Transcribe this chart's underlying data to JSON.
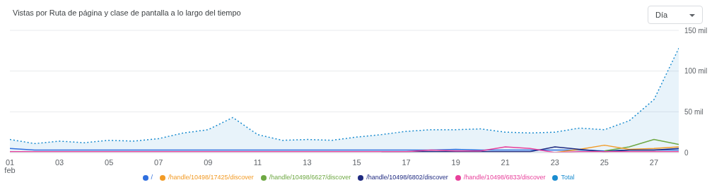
{
  "chart_data": {
    "type": "line",
    "title": "Vistas por Ruta de página y clase de pantalla a lo largo del tiempo",
    "x": [
      1,
      2,
      3,
      4,
      5,
      6,
      7,
      8,
      9,
      10,
      11,
      12,
      13,
      14,
      15,
      16,
      17,
      18,
      19,
      20,
      21,
      22,
      23,
      24,
      25,
      26,
      27,
      28
    ],
    "xlim": [
      1,
      28
    ],
    "xticks": [
      {
        "value": 1,
        "label": "01\nfeb"
      },
      {
        "value": 3,
        "label": "03"
      },
      {
        "value": 5,
        "label": "05"
      },
      {
        "value": 7,
        "label": "07"
      },
      {
        "value": 9,
        "label": "09"
      },
      {
        "value": 11,
        "label": "11"
      },
      {
        "value": 13,
        "label": "13"
      },
      {
        "value": 15,
        "label": "15"
      },
      {
        "value": 17,
        "label": "17"
      },
      {
        "value": 19,
        "label": "19"
      },
      {
        "value": 21,
        "label": "21"
      },
      {
        "value": 23,
        "label": "23"
      },
      {
        "value": 25,
        "label": "25"
      },
      {
        "value": 27,
        "label": "27"
      }
    ],
    "ylim": [
      0,
      150
    ],
    "yticks": [
      0,
      {
        "value": 50,
        "label": "50 mil"
      },
      {
        "value": 100,
        "label": "100 mil"
      },
      {
        "value": 150,
        "label": "150 mil"
      }
    ],
    "grid": "y",
    "legend": "bottom",
    "annotations": [
      "Día"
    ],
    "series": [
      {
        "name": "Total",
        "type": "area",
        "line_style": "dotted",
        "color": "#1a8ccf",
        "values": [
          16,
          11,
          14,
          12,
          15,
          14,
          17,
          24,
          28,
          43,
          22,
          15,
          16,
          15,
          19,
          22,
          26,
          28,
          28,
          29,
          25,
          24,
          25,
          30,
          28,
          39,
          65,
          128
        ]
      },
      {
        "name": "/",
        "color": "#2f6fdf",
        "values": [
          5,
          3,
          3,
          3,
          3,
          3,
          3,
          3,
          3,
          3,
          3,
          3,
          3,
          3,
          3,
          3,
          3,
          3,
          4,
          3,
          3,
          3,
          3,
          3,
          2,
          3,
          3,
          3
        ]
      },
      {
        "name": "/handle/10498/6627/discover",
        "color": "#6ea843",
        "values": [
          null,
          null,
          null,
          null,
          null,
          null,
          null,
          null,
          null,
          null,
          null,
          null,
          null,
          null,
          null,
          null,
          null,
          null,
          null,
          null,
          null,
          null,
          null,
          null,
          2,
          7,
          16,
          10
        ]
      },
      {
        "name": "/handle/10498/17425/discover",
        "color": "#f29b26",
        "values": [
          null,
          null,
          null,
          null,
          null,
          null,
          null,
          null,
          null,
          null,
          null,
          null,
          null,
          null,
          null,
          null,
          null,
          null,
          null,
          null,
          null,
          null,
          0,
          4,
          9,
          4,
          5,
          7
        ]
      },
      {
        "name": "/handle/10498/6802/discover",
        "color": "#1f2a80",
        "values": [
          null,
          null,
          null,
          null,
          null,
          null,
          null,
          null,
          null,
          null,
          null,
          null,
          null,
          null,
          null,
          1,
          1,
          1,
          1,
          1,
          1,
          1,
          7,
          4,
          1,
          3,
          3,
          5
        ]
      },
      {
        "name": "/handle/10498/6833/discover",
        "color": "#e8409b",
        "values": [
          1,
          1,
          1,
          1,
          1,
          1,
          1,
          1,
          1,
          1,
          1,
          1,
          1,
          1,
          1,
          1,
          1,
          3,
          2,
          2,
          7,
          5,
          0,
          1,
          1,
          1,
          1,
          1
        ]
      }
    ]
  }
}
